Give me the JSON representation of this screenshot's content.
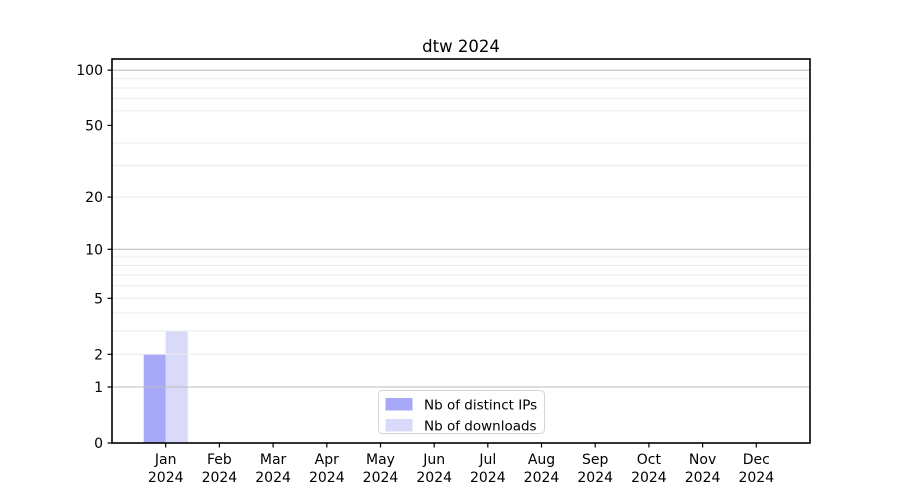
{
  "chart_data": {
    "type": "bar",
    "title": "dtw 2024",
    "categories": [
      "Jan",
      "Feb",
      "Mar",
      "Apr",
      "May",
      "Jun",
      "Jul",
      "Aug",
      "Sep",
      "Oct",
      "Nov",
      "Dec"
    ],
    "year_label": "2024",
    "series": [
      {
        "name": "Nb of distinct IPs",
        "color": "#a8a8f8",
        "values": [
          2,
          0,
          0,
          0,
          0,
          0,
          0,
          0,
          0,
          0,
          0,
          0
        ]
      },
      {
        "name": "Nb of downloads",
        "color": "#d9d9f9",
        "values": [
          3,
          0,
          0,
          0,
          0,
          0,
          0,
          0,
          0,
          0,
          0,
          0
        ]
      }
    ],
    "yscale": "log1p",
    "yticks": [
      0,
      1,
      2,
      5,
      10,
      20,
      50,
      100
    ],
    "ylim": [
      0,
      115
    ],
    "grid": {
      "major_values": [
        1,
        10,
        100
      ],
      "minor_values": [
        2,
        3,
        4,
        5,
        6,
        7,
        8,
        9,
        20,
        30,
        40,
        60,
        70,
        80,
        90
      ],
      "major_color": "#bdbdbd",
      "minor_color": "#ebebeb"
    },
    "legend_position": "lower center",
    "xlabel": "",
    "ylabel": ""
  }
}
